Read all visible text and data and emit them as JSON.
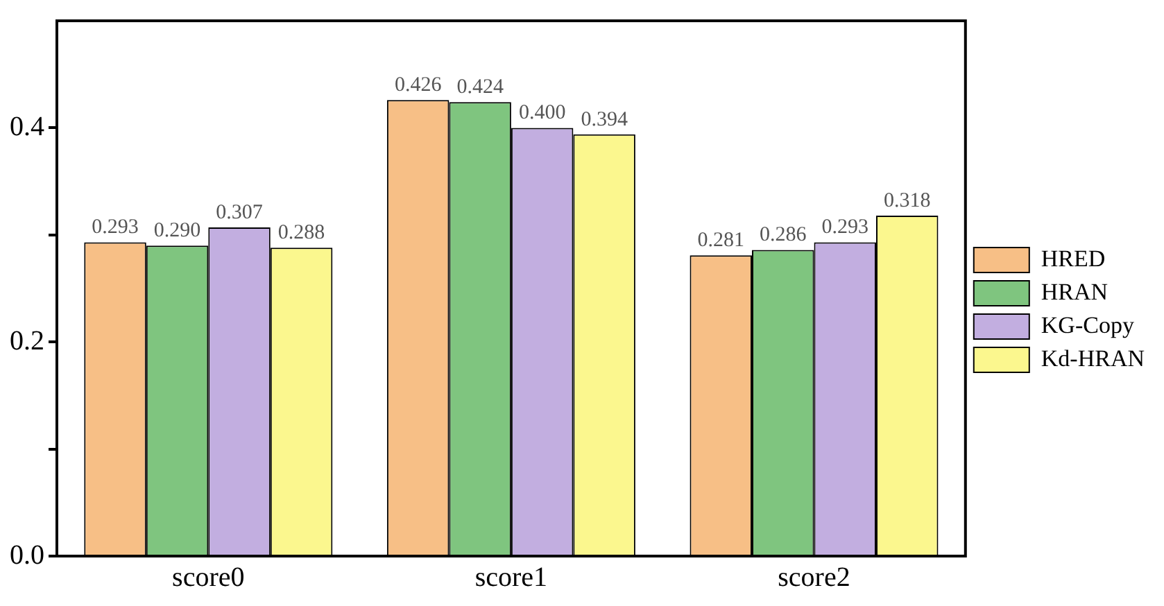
{
  "chart_data": {
    "type": "bar",
    "categories": [
      "score0",
      "score1",
      "score2"
    ],
    "series": [
      {
        "name": "HRED",
        "color": "#f7bf86",
        "values": [
          0.293,
          0.426,
          0.281
        ],
        "value_labels": [
          "0.293",
          "0.426",
          "0.281"
        ]
      },
      {
        "name": "HRAN",
        "color": "#7fc57f",
        "values": [
          0.29,
          0.424,
          0.286
        ],
        "value_labels": [
          "0.290",
          "0.424",
          "0.286"
        ]
      },
      {
        "name": "KG-Copy",
        "color": "#c2aee0",
        "values": [
          0.307,
          0.4,
          0.293
        ],
        "value_labels": [
          "0.307",
          "0.400",
          "0.293"
        ]
      },
      {
        "name": "Kd-HRAN",
        "color": "#fbf78e",
        "values": [
          0.288,
          0.394,
          0.318
        ],
        "value_labels": [
          "0.288",
          "0.394",
          "0.318"
        ]
      }
    ],
    "ylim": [
      0,
      0.5
    ],
    "yticks": [
      {
        "value": 0,
        "label": "0.0"
      },
      {
        "value": 0.1,
        "label": null
      },
      {
        "value": 0.2,
        "label": "0.2"
      },
      {
        "value": 0.3,
        "label": null
      },
      {
        "value": 0.4,
        "label": "0.4"
      }
    ],
    "grid": false,
    "legend": "right"
  }
}
